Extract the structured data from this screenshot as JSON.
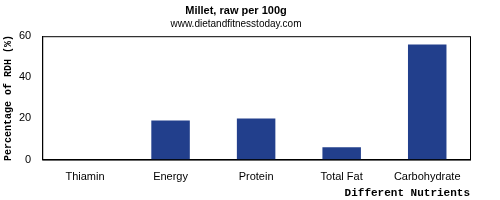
{
  "chart_data": {
    "type": "bar",
    "title": "Millet, raw per 100g",
    "subtitle": "www.dietandfitnesstoday.com",
    "xlabel": "Different Nutrients",
    "ylabel": "Percentage of RDH (%)",
    "categories": [
      "Thiamin",
      "Energy",
      "Protein",
      "Total Fat",
      "Carbohydrate"
    ],
    "values": [
      0,
      19,
      20,
      6,
      56
    ],
    "color": "#223f8c",
    "ylim": [
      0,
      60
    ],
    "yticks": [
      0,
      20,
      40,
      60
    ],
    "grid": false
  }
}
